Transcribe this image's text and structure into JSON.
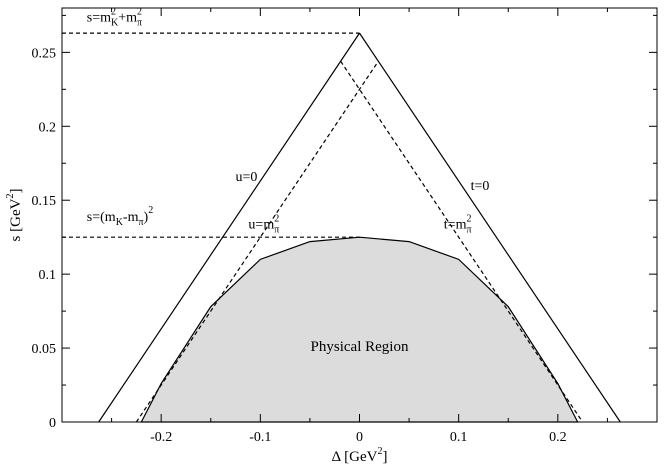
{
  "chart_data": {
    "type": "line",
    "xlabel": "Δ [GeV²]",
    "ylabel": "s [GeV²]",
    "xlim": [
      -0.3,
      0.3
    ],
    "ylim": [
      0,
      0.28
    ],
    "x_ticks": [
      -0.2,
      -0.1,
      0,
      0.1,
      0.2
    ],
    "x_tick_labels": [
      "-0.2",
      "-0.1",
      "0",
      "0.1",
      "0.2"
    ],
    "y_ticks": [
      0,
      0.05,
      0.1,
      0.15,
      0.2,
      0.25
    ],
    "y_tick_labels": [
      "0",
      "0.05",
      "0.1",
      "0.15",
      "0.2",
      "0.25"
    ],
    "colors": {
      "region_fill": "#dcdcdc",
      "line": "#000000"
    },
    "series": [
      {
        "name": "u=0",
        "style": "solid",
        "x": [
          -0.263,
          0.0
        ],
        "y": [
          0.0,
          0.263
        ]
      },
      {
        "name": "t=0",
        "style": "solid",
        "x": [
          0.0,
          0.263
        ],
        "y": [
          0.263,
          0.0
        ]
      },
      {
        "name": "u=mπ²",
        "style": "dashed",
        "x": [
          -0.225,
          0.019
        ],
        "y": [
          0.0,
          0.244
        ]
      },
      {
        "name": "t=mπ²",
        "style": "dashed",
        "x": [
          -0.019,
          0.225
        ],
        "y": [
          0.244,
          0.0
        ]
      },
      {
        "name": "s=mK²+mπ²",
        "style": "dashed",
        "x": [
          -0.3,
          0.0
        ],
        "y": [
          0.263,
          0.263
        ]
      },
      {
        "name": "s=(mK-mπ)²",
        "style": "dashed",
        "x": [
          -0.3,
          0.0
        ],
        "y": [
          0.125,
          0.125
        ]
      }
    ],
    "physical_region": {
      "name": "Physical Region",
      "x": [
        -0.22,
        -0.2,
        -0.15,
        -0.1,
        -0.05,
        0.0,
        0.05,
        0.1,
        0.15,
        0.2,
        0.22
      ],
      "y": [
        0.0,
        0.026,
        0.078,
        0.11,
        0.122,
        0.125,
        0.122,
        0.11,
        0.078,
        0.026,
        0.0
      ]
    },
    "annotations": [
      {
        "base": "s=m",
        "sub1": "K",
        "sup1": "2",
        "mid": "+m",
        "sub2": "π",
        "sup2": "2",
        "at": [
          -0.275,
          0.271
        ]
      },
      {
        "base": "s=(m",
        "sub1": "K",
        "sup1": "",
        "mid": "-m",
        "sub2": "π",
        "sup2": "2",
        "tail": ")",
        "at": [
          -0.275,
          0.136
        ]
      },
      {
        "base": "u=0",
        "at": [
          -0.125,
          0.163
        ]
      },
      {
        "base": "t=0",
        "at": [
          0.112,
          0.157
        ]
      },
      {
        "base": "u=m",
        "sub1": "π",
        "sup1": "2",
        "at": [
          -0.112,
          0.131
        ]
      },
      {
        "base": "t=m",
        "sub1": "π",
        "sup1": "2",
        "at": [
          0.085,
          0.131
        ]
      }
    ]
  }
}
